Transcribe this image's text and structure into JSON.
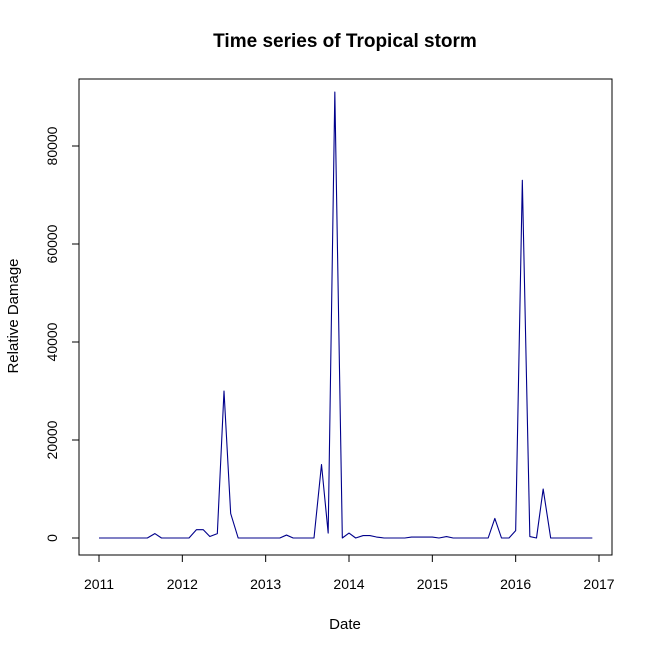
{
  "chart_data": {
    "type": "line",
    "title": "Time series of Tropical storm",
    "xlabel": "Date",
    "ylabel": "Relative Damage",
    "xlim": [
      2011,
      2017
    ],
    "ylim": [
      0,
      90000
    ],
    "x_ticks": [
      "2011",
      "2012",
      "2013",
      "2014",
      "2015",
      "2016",
      "2017"
    ],
    "y_ticks": [
      "0",
      "20000",
      "40000",
      "60000",
      "80000"
    ],
    "grid": false,
    "line_color": "#00008B",
    "series": [
      {
        "x": [
          2011.0,
          2011.08,
          2011.17,
          2011.25,
          2011.33,
          2011.42,
          2011.5,
          2011.58,
          2011.67,
          2011.75,
          2011.83,
          2011.92,
          2012.0,
          2012.08,
          2012.17,
          2012.25,
          2012.33,
          2012.42,
          2012.5,
          2012.58,
          2012.67,
          2012.75,
          2012.83,
          2012.92,
          2013.0,
          2013.08,
          2013.17,
          2013.25,
          2013.33,
          2013.42,
          2013.5,
          2013.58,
          2013.67,
          2013.75,
          2013.83,
          2013.92,
          2014.0,
          2014.08,
          2014.17,
          2014.25,
          2014.33,
          2014.42,
          2014.5,
          2014.58,
          2014.67,
          2014.75,
          2014.83,
          2014.92,
          2015.0,
          2015.08,
          2015.17,
          2015.25,
          2015.33,
          2015.42,
          2015.5,
          2015.58,
          2015.67,
          2015.75,
          2015.83,
          2015.92,
          2016.0,
          2016.08,
          2016.17,
          2016.25,
          2016.33,
          2016.42,
          2016.5,
          2016.58,
          2016.67,
          2016.75,
          2016.83,
          2016.92
        ],
        "y": [
          0,
          0,
          0,
          0,
          0,
          0,
          0,
          0,
          900,
          0,
          0,
          0,
          0,
          0,
          1700,
          1700,
          300,
          900,
          30000,
          5000,
          0,
          0,
          0,
          0,
          0,
          0,
          0,
          600,
          0,
          0,
          0,
          0,
          15000,
          1000,
          91000,
          0,
          1000,
          0,
          500,
          500,
          200,
          0,
          0,
          0,
          0,
          200,
          200,
          200,
          200,
          0,
          300,
          0,
          0,
          0,
          0,
          0,
          0,
          4000,
          0,
          0,
          1500,
          73000,
          300,
          0,
          10000,
          0,
          0,
          0,
          0,
          0,
          0,
          0
        ]
      }
    ]
  }
}
